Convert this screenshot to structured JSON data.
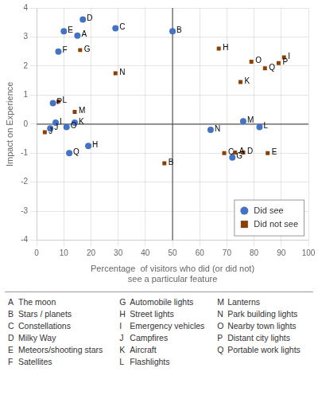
{
  "chart_data": {
    "type": "scatter",
    "xlabel": [
      "Percentage  of visitors who did (or did not)",
      "see a particular feature"
    ],
    "ylabel": "Impact on Experience",
    "xlim": [
      0,
      100
    ],
    "ylim": [
      -4,
      4
    ],
    "xticks": [
      0,
      10,
      20,
      30,
      40,
      50,
      60,
      70,
      80,
      90,
      100
    ],
    "yticks": [
      -4,
      -3,
      -2,
      -1,
      0,
      1,
      2,
      3,
      4
    ],
    "grid": true,
    "legend": "lower right",
    "vline": 50,
    "hline": 0,
    "series": [
      {
        "name": "Did see",
        "color": "#4472c4",
        "marker": "circle",
        "labels": [
          "A",
          "B",
          "C",
          "D",
          "E",
          "F",
          "G",
          "H",
          "I",
          "J",
          "K",
          "L",
          "M",
          "N",
          "O",
          "P",
          "Q"
        ],
        "x": [
          15,
          50,
          29,
          17,
          10,
          8,
          72,
          19,
          7,
          5,
          14,
          82,
          76,
          64,
          11,
          6,
          12
        ],
        "values": [
          3.05,
          3.2,
          3.3,
          3.6,
          3.2,
          2.5,
          -1.15,
          -0.75,
          0.05,
          -0.15,
          0.05,
          -0.1,
          0.1,
          -0.2,
          -0.1,
          0.72,
          -1.0
        ]
      },
      {
        "name": "Did not see",
        "color": "#8B4000",
        "marker": "square",
        "labels": [
          "A",
          "B",
          "C",
          "D",
          "E",
          "G",
          "H",
          "I",
          "J",
          "K",
          "L",
          "M",
          "N",
          "O",
          "P",
          "Q"
        ],
        "x": [
          73,
          47,
          69,
          76,
          85,
          16,
          67,
          91,
          3,
          75,
          8,
          14,
          29,
          79,
          89,
          84
        ],
        "values": [
          -0.98,
          -1.35,
          -1.0,
          -0.98,
          -1.0,
          2.55,
          2.6,
          2.3,
          -0.28,
          1.45,
          0.78,
          0.42,
          1.75,
          2.15,
          2.1,
          1.92
        ]
      }
    ],
    "annotations": [
      {
        "label": "A",
        "text": "The moon"
      },
      {
        "label": "B",
        "text": "Stars / planets"
      },
      {
        "label": "C",
        "text": "Constellations"
      },
      {
        "label": "D",
        "text": "Milky Way"
      },
      {
        "label": "E",
        "text": "Meteors/shooting stars"
      },
      {
        "label": "F",
        "text": "Satellites"
      },
      {
        "label": "G",
        "text": "Automobile lights"
      },
      {
        "label": "H",
        "text": "Street lights"
      },
      {
        "label": "I",
        "text": "Emergency vehicles"
      },
      {
        "label": "J",
        "text": "Campfires"
      },
      {
        "label": "K",
        "text": "Aircraft"
      },
      {
        "label": "L",
        "text": "Flashlights"
      },
      {
        "label": "M",
        "text": "Lanterns"
      },
      {
        "label": "N",
        "text": "Park building lights"
      },
      {
        "label": "O",
        "text": "Nearby town lights"
      },
      {
        "label": "P",
        "text": "Distant city lights"
      },
      {
        "label": "Q",
        "text": "Portable work lights"
      }
    ]
  }
}
